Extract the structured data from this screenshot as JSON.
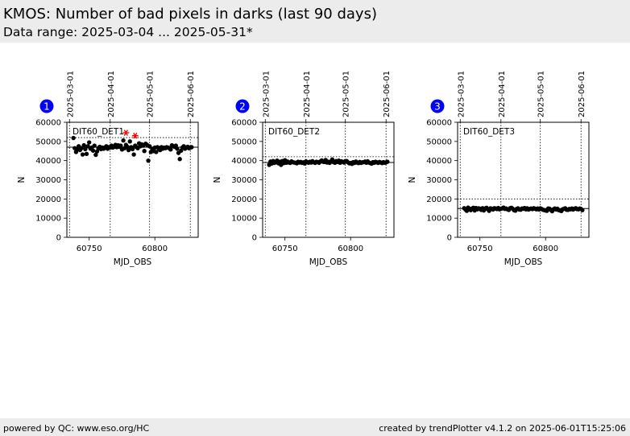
{
  "header": {
    "title": "KMOS: Number of bad pixels in darks (last 90 days)",
    "subtitle": "Data range: 2025-03-04 ... 2025-05-31*"
  },
  "footer": {
    "left": "powered by QC: www.eso.org/HC",
    "right": "created by trendPlotter v4.1.2 on 2025-06-01T15:25:06"
  },
  "colors": {
    "badge": "#0000ff",
    "points": "#000000",
    "outliers": "#ff0000",
    "header_bg": "#ececec"
  },
  "chart_data": [
    {
      "type": "scatter",
      "badge": "1",
      "label": "DIT60_DET1",
      "xlabel": "MJD_OBS",
      "ylabel": "N",
      "xlim": [
        60733,
        60833
      ],
      "ylim": [
        0,
        60000
      ],
      "xticks": [
        60750,
        60800
      ],
      "yticks": [
        0,
        10000,
        20000,
        30000,
        40000,
        50000,
        60000
      ],
      "date_ticks": [
        {
          "mjd": 60735,
          "label": "2025-03-01"
        },
        {
          "mjd": 60766,
          "label": "2025-04-01"
        },
        {
          "mjd": 60796,
          "label": "2025-05-01"
        },
        {
          "mjd": 60827,
          "label": "2025-06-01"
        }
      ],
      "reference_line": 47000,
      "threshold_lines": [
        52000
      ],
      "x": [
        60738,
        60739,
        60740,
        60741,
        60742,
        60743,
        60744,
        60745,
        60746,
        60747,
        60748,
        60749,
        60750,
        60751,
        60752,
        60753,
        60754,
        60755,
        60756,
        60757,
        60758,
        60759,
        60760,
        60761,
        60762,
        60763,
        60764,
        60765,
        60766,
        60767,
        60768,
        60769,
        60770,
        60771,
        60772,
        60773,
        60774,
        60775,
        60776,
        60777,
        60778,
        60779,
        60780,
        60781,
        60782,
        60783,
        60784,
        60785,
        60786,
        60787,
        60788,
        60789,
        60790,
        60791,
        60792,
        60793,
        60794,
        60795,
        60796,
        60797,
        60798,
        60799,
        60800,
        60801,
        60802,
        60803,
        60804,
        60805,
        60806,
        60807,
        60808,
        60809,
        60810,
        60811,
        60812,
        60813,
        60814,
        60815,
        60816,
        60817,
        60818,
        60819,
        60820,
        60821,
        60822,
        60823,
        60824,
        60825,
        60826,
        60827,
        60828
      ],
      "y": [
        51800,
        46500,
        44500,
        46000,
        47500,
        45500,
        46500,
        43200,
        48000,
        46000,
        43500,
        47500,
        49500,
        46200,
        46800,
        45200,
        47800,
        43000,
        44800,
        46500,
        47200,
        46000,
        46800,
        46200,
        46800,
        47500,
        46200,
        47000,
        46800,
        47800,
        46800,
        47200,
        48200,
        47000,
        48000,
        47200,
        47800,
        45800,
        50500,
        46500,
        48200,
        47200,
        45500,
        50000,
        47000,
        46000,
        43200,
        47800,
        47000,
        46500,
        49000,
        47500,
        48500,
        47800,
        45000,
        48800,
        48200,
        40000,
        47500,
        44500,
        46200,
        45000,
        46800,
        44500,
        47000,
        46200,
        45500,
        47000,
        46200,
        46800,
        46500,
        47000,
        46800,
        46500,
        45800,
        48000,
        47500,
        47200,
        47800,
        46200,
        44000,
        40800,
        45200,
        46800,
        47500,
        46200,
        46800,
        47200,
        46500,
        46800,
        47000
      ],
      "outliers": [
        {
          "x": 60778,
          "y": 54500
        },
        {
          "x": 60785,
          "y": 53000
        }
      ]
    },
    {
      "type": "scatter",
      "badge": "2",
      "label": "DIT60_DET2",
      "xlabel": "MJD_OBS",
      "ylabel": "N",
      "xlim": [
        60733,
        60833
      ],
      "ylim": [
        0,
        60000
      ],
      "xticks": [
        60750,
        60800
      ],
      "yticks": [
        0,
        10000,
        20000,
        30000,
        40000,
        50000,
        60000
      ],
      "date_ticks": [
        {
          "mjd": 60735,
          "label": "2025-03-01"
        },
        {
          "mjd": 60766,
          "label": "2025-04-01"
        },
        {
          "mjd": 60796,
          "label": "2025-05-01"
        },
        {
          "mjd": 60827,
          "label": "2025-06-01"
        }
      ],
      "reference_line": 39000,
      "threshold_lines": [
        42000
      ],
      "x": [
        60738,
        60739,
        60740,
        60741,
        60742,
        60743,
        60744,
        60745,
        60746,
        60747,
        60748,
        60749,
        60750,
        60751,
        60752,
        60753,
        60754,
        60755,
        60756,
        60757,
        60758,
        60759,
        60760,
        60761,
        60762,
        60763,
        60764,
        60765,
        60766,
        60767,
        60768,
        60769,
        60770,
        60771,
        60772,
        60773,
        60774,
        60775,
        60776,
        60777,
        60778,
        60779,
        60780,
        60781,
        60782,
        60783,
        60784,
        60785,
        60786,
        60787,
        60788,
        60789,
        60790,
        60791,
        60792,
        60793,
        60794,
        60795,
        60796,
        60797,
        60798,
        60799,
        60800,
        60801,
        60802,
        60803,
        60804,
        60805,
        60806,
        60807,
        60808,
        60809,
        60810,
        60811,
        60812,
        60813,
        60814,
        60815,
        60816,
        60817,
        60818,
        60819,
        60820,
        60821,
        60822,
        60823,
        60824,
        60825,
        60826,
        60827,
        60828
      ],
      "y": [
        37800,
        39500,
        38500,
        39800,
        38800,
        39200,
        40000,
        38600,
        39400,
        37800,
        39800,
        38700,
        40200,
        38900,
        39500,
        39000,
        38800,
        39600,
        39200,
        39000,
        38900,
        38600,
        39400,
        39000,
        39300,
        38800,
        39100,
        38500,
        39600,
        39200,
        38900,
        39400,
        39000,
        39700,
        39100,
        38800,
        39400,
        39200,
        38900,
        39600,
        40100,
        39400,
        39300,
        40300,
        39000,
        39400,
        38800,
        39500,
        40600,
        39200,
        38900,
        39800,
        39300,
        40000,
        38900,
        39600,
        39400,
        39000,
        39700,
        39800,
        39100,
        38600,
        38800,
        38300,
        39200,
        38800,
        39500,
        39000,
        38700,
        39300,
        38800,
        39100,
        39200,
        39500,
        38900,
        39600,
        39000,
        38700,
        38400,
        39200,
        38900,
        39400,
        39100,
        38800,
        39300,
        39000,
        38700,
        39200,
        38900,
        39100,
        39400
      ],
      "outliers": []
    },
    {
      "type": "scatter",
      "badge": "3",
      "label": "DIT60_DET3",
      "xlabel": "MJD_OBS",
      "ylabel": "N",
      "xlim": [
        60733,
        60833
      ],
      "ylim": [
        0,
        60000
      ],
      "xticks": [
        60750,
        60800
      ],
      "yticks": [
        0,
        10000,
        20000,
        30000,
        40000,
        50000,
        60000
      ],
      "date_ticks": [
        {
          "mjd": 60735,
          "label": "2025-03-01"
        },
        {
          "mjd": 60766,
          "label": "2025-04-01"
        },
        {
          "mjd": 60796,
          "label": "2025-05-01"
        },
        {
          "mjd": 60827,
          "label": "2025-06-01"
        }
      ],
      "reference_line": 15000,
      "threshold_lines": [
        20000
      ],
      "x": [
        60738,
        60739,
        60740,
        60741,
        60742,
        60743,
        60744,
        60745,
        60746,
        60747,
        60748,
        60749,
        60750,
        60751,
        60752,
        60753,
        60754,
        60755,
        60756,
        60757,
        60758,
        60759,
        60760,
        60761,
        60762,
        60763,
        60764,
        60765,
        60766,
        60767,
        60768,
        60769,
        60770,
        60771,
        60772,
        60773,
        60774,
        60775,
        60776,
        60777,
        60778,
        60779,
        60780,
        60781,
        60782,
        60783,
        60784,
        60785,
        60786,
        60787,
        60788,
        60789,
        60790,
        60791,
        60792,
        60793,
        60794,
        60795,
        60796,
        60797,
        60798,
        60799,
        60800,
        60801,
        60802,
        60803,
        60804,
        60805,
        60806,
        60807,
        60808,
        60809,
        60810,
        60811,
        60812,
        60813,
        60814,
        60815,
        60816,
        60817,
        60818,
        60819,
        60820,
        60821,
        60822,
        60823,
        60824,
        60825,
        60826,
        60827,
        60828
      ],
      "y": [
        15200,
        14500,
        13800,
        15500,
        14800,
        14200,
        15000,
        15400,
        14000,
        15300,
        14600,
        15100,
        14900,
        14300,
        15200,
        14000,
        15000,
        15400,
        14700,
        13800,
        15100,
        14900,
        14500,
        15200,
        15000,
        14700,
        15300,
        14600,
        14900,
        15100,
        15500,
        14800,
        15000,
        14600,
        14300,
        15200,
        15400,
        14900,
        14100,
        13900,
        14800,
        15100,
        14500,
        14400,
        15000,
        14900,
        15300,
        14600,
        15100,
        14500,
        14800,
        15000,
        14700,
        15200,
        14900,
        14600,
        15000,
        14500,
        15100,
        14800,
        14400,
        14200,
        14000,
        13800,
        15000,
        14900,
        14300,
        13600,
        14600,
        15000,
        14500,
        14900,
        14200,
        14000,
        13700,
        14600,
        14900,
        15100,
        14400,
        14300,
        14800,
        14600,
        15000,
        14500,
        14900,
        15200,
        14700,
        14600,
        15000,
        14800,
        14200
      ],
      "outliers": []
    }
  ]
}
